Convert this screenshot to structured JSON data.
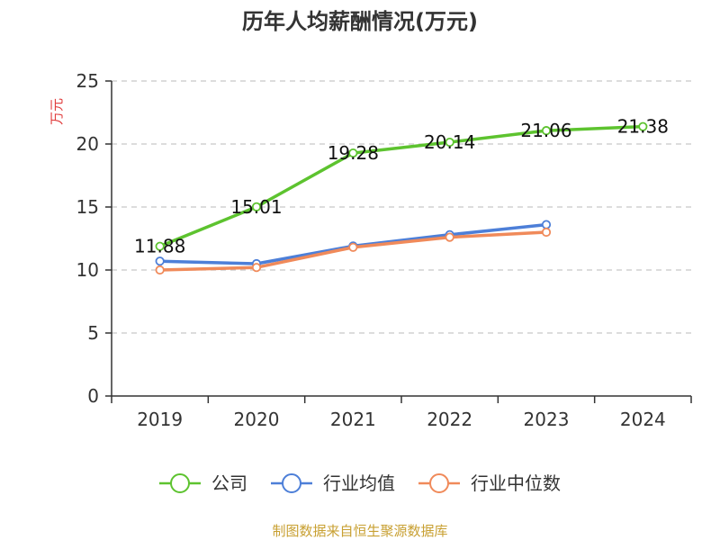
{
  "chart_data": {
    "type": "line",
    "title": "历年人均薪酬情况(万元)",
    "xlabel": "",
    "ylabel": "万元",
    "categories": [
      "2019",
      "2020",
      "2021",
      "2022",
      "2023",
      "2024"
    ],
    "ylim": [
      0,
      25
    ],
    "yticks": [
      0,
      5,
      10,
      15,
      20,
      25
    ],
    "grid": true,
    "legend_position": "bottom",
    "series": [
      {
        "name": "公司",
        "color": "#5dc32f",
        "values": [
          11.88,
          15.01,
          19.28,
          20.14,
          21.06,
          21.38
        ],
        "labels": [
          "11.88",
          "15.01",
          "19.28",
          "20.14",
          "21.06",
          "21.38"
        ]
      },
      {
        "name": "行业均值",
        "color": "#4d7fd8",
        "values": [
          10.7,
          10.5,
          11.9,
          12.8,
          13.6,
          null
        ]
      },
      {
        "name": "行业中位数",
        "color": "#f08a5a",
        "values": [
          10.0,
          10.2,
          11.8,
          12.6,
          13.0,
          null
        ]
      }
    ]
  },
  "footer": {
    "source": "制图数据来自恒生聚源数据库"
  }
}
